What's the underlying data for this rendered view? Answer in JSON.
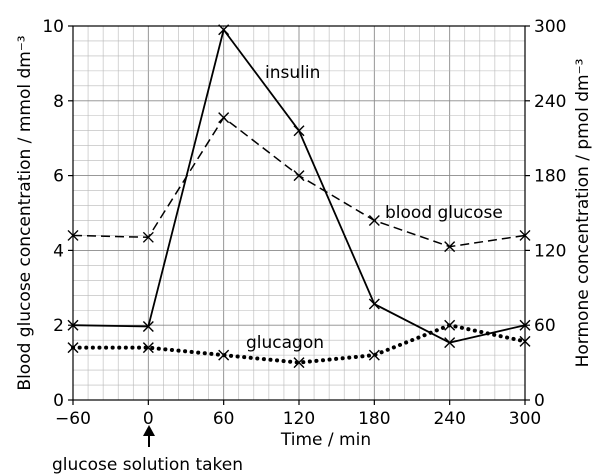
{
  "chart_data": {
    "type": "line",
    "x": [
      -60,
      0,
      60,
      120,
      180,
      240,
      300
    ],
    "xlabel": "Time / min",
    "ylabel": "Blood glucose concentration / mmol dm⁻³",
    "y2label": "Hormone concentration / pmol dm⁻³",
    "xlim": [
      -60,
      300
    ],
    "ylim": [
      0,
      10
    ],
    "y2lim": [
      0,
      300
    ],
    "xticks": [
      "−60",
      "0",
      "60",
      "120",
      "180",
      "240",
      "300"
    ],
    "yticks": [
      "0",
      "2",
      "4",
      "6",
      "8",
      "10"
    ],
    "y2ticks": [
      "0",
      "60",
      "120",
      "180",
      "240",
      "300"
    ],
    "grid": true,
    "annotation": "glucose solution taken",
    "series": [
      {
        "name": "insulin",
        "axis": "right",
        "style": "solid",
        "values": [
          60,
          59,
          297,
          216,
          77,
          46,
          60
        ]
      },
      {
        "name": "blood glucose",
        "axis": "left",
        "style": "dashed",
        "values": [
          4.4,
          4.35,
          7.55,
          6.0,
          4.8,
          4.1,
          4.4
        ]
      },
      {
        "name": "glucagon",
        "axis": "right",
        "style": "dotted",
        "values": [
          42,
          42,
          36,
          30,
          36,
          60,
          47
        ]
      }
    ]
  }
}
